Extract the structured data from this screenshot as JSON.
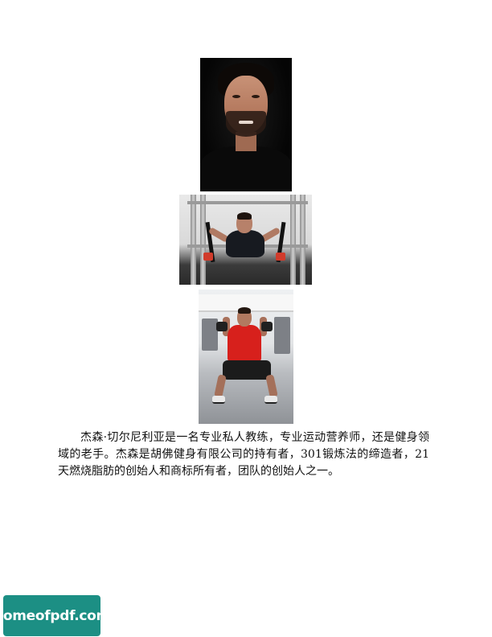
{
  "images": [
    {
      "name": "portrait-photo",
      "description_icon": "man-portrait"
    },
    {
      "name": "trx-pushup-photo",
      "description_icon": "suspension-training"
    },
    {
      "name": "dumbbell-squat-photo",
      "description_icon": "dumbbell-squat"
    }
  ],
  "bio": {
    "text": "杰森·切尔尼利亚是一名专业私人教练，专业运动营养师，还是健身领域的老手。杰森是胡佛健身有限公司的持有者，301锻炼法的缔造者，21天燃烧脂肪的创始人和商标所有者，团队的创始人之一。"
  },
  "watermark": {
    "text": "homeofpdf.com",
    "background_color": "#1c8f84",
    "text_color": "#ffffff"
  }
}
